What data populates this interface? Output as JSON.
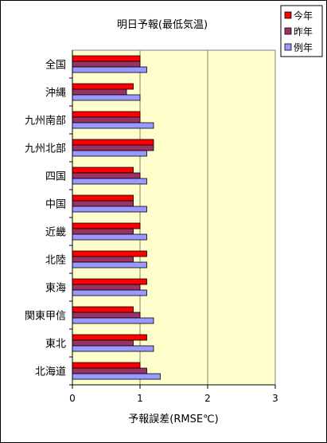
{
  "chart_data": {
    "type": "bar",
    "orientation": "horizontal",
    "title": "明日予報(最低気温)",
    "xlabel": "予報誤差(RMSE℃)",
    "ylabel": "",
    "xlim": [
      0,
      3
    ],
    "xticks": [
      "0",
      "1",
      "2",
      "3"
    ],
    "grid": "vertical major gridlines",
    "legend": "top-right",
    "categories": [
      "全国",
      "沖縄",
      "九州南部",
      "九州北部",
      "四国",
      "中国",
      "近畿",
      "北陸",
      "東海",
      "関東甲信",
      "東北",
      "北海道"
    ],
    "series": [
      {
        "name": "今年",
        "color": "#ff0000",
        "values": [
          1.0,
          0.9,
          1.0,
          1.2,
          0.9,
          0.9,
          1.0,
          1.1,
          1.1,
          0.9,
          1.1,
          1.0
        ]
      },
      {
        "name": "昨年",
        "color": "#993366",
        "values": [
          1.0,
          0.8,
          1.0,
          1.2,
          1.0,
          0.9,
          0.9,
          0.9,
          1.0,
          1.0,
          0.9,
          1.1
        ]
      },
      {
        "name": "例年",
        "color": "#9999ff",
        "values": [
          1.1,
          1.0,
          1.2,
          1.1,
          1.1,
          1.1,
          1.1,
          1.1,
          1.1,
          1.2,
          1.2,
          1.3
        ]
      }
    ],
    "plot_background": "#ffffcc"
  }
}
